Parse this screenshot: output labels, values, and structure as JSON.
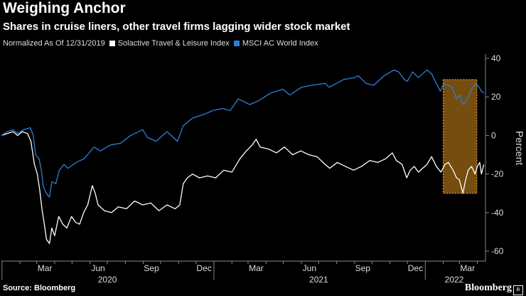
{
  "header": {
    "title": "Weighing Anchor",
    "subtitle": "Shares in cruise liners, other travel firms lagging wider stock market"
  },
  "legend": {
    "note": "Normalized As Of 12/31/2019",
    "items": [
      {
        "label": "Solactive Travel & Leisure Index",
        "color": "#ffffff"
      },
      {
        "label": "MSCI AC World Index",
        "color": "#2f7ed8"
      }
    ]
  },
  "footer": {
    "source": "Source: Bloomberg",
    "brand": "Bloomberg"
  },
  "colors": {
    "background": "#000000",
    "travel": "#ffffff",
    "world": "#2f7ed8",
    "highlight_fill": "#8a5a12",
    "highlight_border": "#f0a020"
  },
  "chart_data": {
    "type": "line",
    "title": "Weighing Anchor",
    "subtitle": "Shares in cruise liners, other travel firms lagging wider stock market",
    "ylabel": "Percent",
    "ylim": [
      -60,
      40
    ],
    "yticks": [
      40,
      20,
      0,
      -20,
      -40,
      -60
    ],
    "x_axis": {
      "month_ticks": [
        "Mar",
        "Jun",
        "Sep",
        "Dec",
        "Mar",
        "Jun",
        "Sep",
        "Dec",
        "Mar"
      ],
      "year_labels": [
        "2020",
        "2021",
        "2022"
      ]
    },
    "legend_position": "top-left",
    "grid": false,
    "highlight": {
      "from": "2022-02-01",
      "to": "2022-03-31"
    },
    "series": [
      {
        "name": "Solactive Travel & Leisure Index",
        "color": "#ffffff",
        "points": [
          [
            "2019-12-31",
            0
          ],
          [
            "2020-01-10",
            1
          ],
          [
            "2020-01-20",
            2
          ],
          [
            "2020-01-28",
            0
          ],
          [
            "2020-02-05",
            2
          ],
          [
            "2020-02-14",
            1
          ],
          [
            "2020-02-20",
            -3
          ],
          [
            "2020-02-26",
            -15
          ],
          [
            "2020-03-02",
            -20
          ],
          [
            "2020-03-06",
            -28
          ],
          [
            "2020-03-10",
            -38
          ],
          [
            "2020-03-13",
            -44
          ],
          [
            "2020-03-16",
            -50
          ],
          [
            "2020-03-18",
            -54
          ],
          [
            "2020-03-23",
            -56
          ],
          [
            "2020-03-27",
            -48
          ],
          [
            "2020-04-01",
            -52
          ],
          [
            "2020-04-08",
            -42
          ],
          [
            "2020-04-15",
            -46
          ],
          [
            "2020-04-22",
            -48
          ],
          [
            "2020-04-30",
            -42
          ],
          [
            "2020-05-07",
            -45
          ],
          [
            "2020-05-14",
            -46
          ],
          [
            "2020-05-21",
            -40
          ],
          [
            "2020-05-28",
            -36
          ],
          [
            "2020-06-05",
            -26
          ],
          [
            "2020-06-10",
            -30
          ],
          [
            "2020-06-15",
            -36
          ],
          [
            "2020-06-26",
            -39
          ],
          [
            "2020-07-08",
            -40
          ],
          [
            "2020-07-20",
            -37
          ],
          [
            "2020-08-03",
            -38
          ],
          [
            "2020-08-17",
            -34
          ],
          [
            "2020-08-31",
            -36
          ],
          [
            "2020-09-14",
            -35
          ],
          [
            "2020-09-28",
            -39
          ],
          [
            "2020-10-12",
            -36
          ],
          [
            "2020-10-26",
            -38
          ],
          [
            "2020-11-03",
            -36
          ],
          [
            "2020-11-09",
            -25
          ],
          [
            "2020-11-16",
            -22
          ],
          [
            "2020-11-25",
            -20
          ],
          [
            "2020-12-07",
            -22
          ],
          [
            "2020-12-21",
            -21
          ],
          [
            "2021-01-04",
            -22
          ],
          [
            "2021-01-18",
            -18
          ],
          [
            "2021-02-01",
            -19
          ],
          [
            "2021-02-15",
            -12
          ],
          [
            "2021-02-26",
            -8
          ],
          [
            "2021-03-08",
            -5
          ],
          [
            "2021-03-15",
            -2
          ],
          [
            "2021-03-22",
            -6
          ],
          [
            "2021-04-05",
            -7
          ],
          [
            "2021-04-19",
            -9
          ],
          [
            "2021-05-03",
            -6
          ],
          [
            "2021-05-17",
            -10
          ],
          [
            "2021-05-31",
            -8
          ],
          [
            "2021-06-14",
            -10
          ],
          [
            "2021-06-28",
            -11
          ],
          [
            "2021-07-12",
            -15
          ],
          [
            "2021-07-20",
            -17
          ],
          [
            "2021-08-02",
            -14
          ],
          [
            "2021-08-16",
            -16
          ],
          [
            "2021-08-30",
            -18
          ],
          [
            "2021-09-13",
            -16
          ],
          [
            "2021-09-27",
            -13
          ],
          [
            "2021-10-11",
            -14
          ],
          [
            "2021-10-25",
            -12
          ],
          [
            "2021-11-05",
            -9
          ],
          [
            "2021-11-12",
            -13
          ],
          [
            "2021-11-22",
            -15
          ],
          [
            "2021-11-30",
            -22
          ],
          [
            "2021-12-06",
            -18
          ],
          [
            "2021-12-13",
            -16
          ],
          [
            "2021-12-20",
            -19
          ],
          [
            "2022-01-04",
            -15
          ],
          [
            "2022-01-12",
            -11
          ],
          [
            "2022-01-20",
            -16
          ],
          [
            "2022-01-28",
            -19
          ],
          [
            "2022-02-04",
            -15
          ],
          [
            "2022-02-10",
            -14
          ],
          [
            "2022-02-18",
            -18
          ],
          [
            "2022-02-24",
            -22
          ],
          [
            "2022-03-01",
            -23
          ],
          [
            "2022-03-07",
            -30
          ],
          [
            "2022-03-11",
            -24
          ],
          [
            "2022-03-16",
            -18
          ],
          [
            "2022-03-22",
            -16
          ],
          [
            "2022-03-28",
            -20
          ],
          [
            "2022-04-01",
            -16
          ],
          [
            "2022-04-05",
            -14
          ],
          [
            "2022-04-08",
            -20
          ],
          [
            "2022-04-12",
            -15
          ]
        ]
      },
      {
        "name": "MSCI AC World Index",
        "color": "#2f7ed8",
        "points": [
          [
            "2019-12-31",
            0
          ],
          [
            "2020-01-10",
            2
          ],
          [
            "2020-01-20",
            3
          ],
          [
            "2020-01-28",
            1
          ],
          [
            "2020-02-07",
            3
          ],
          [
            "2020-02-19",
            4
          ],
          [
            "2020-02-24",
            0
          ],
          [
            "2020-02-28",
            -10
          ],
          [
            "2020-03-05",
            -12
          ],
          [
            "2020-03-09",
            -18
          ],
          [
            "2020-03-12",
            -26
          ],
          [
            "2020-03-16",
            -29
          ],
          [
            "2020-03-20",
            -31
          ],
          [
            "2020-03-23",
            -32
          ],
          [
            "2020-03-27",
            -24
          ],
          [
            "2020-04-03",
            -25
          ],
          [
            "2020-04-09",
            -18
          ],
          [
            "2020-04-17",
            -15
          ],
          [
            "2020-04-24",
            -17
          ],
          [
            "2020-05-08",
            -14
          ],
          [
            "2020-05-22",
            -12
          ],
          [
            "2020-06-08",
            -6
          ],
          [
            "2020-06-19",
            -8
          ],
          [
            "2020-07-06",
            -5
          ],
          [
            "2020-07-24",
            -4
          ],
          [
            "2020-08-10",
            0
          ],
          [
            "2020-08-31",
            3
          ],
          [
            "2020-09-08",
            -1
          ],
          [
            "2020-09-23",
            -3
          ],
          [
            "2020-10-12",
            2
          ],
          [
            "2020-10-30",
            -3
          ],
          [
            "2020-11-09",
            5
          ],
          [
            "2020-11-25",
            9
          ],
          [
            "2020-12-15",
            11
          ],
          [
            "2020-12-31",
            13
          ],
          [
            "2021-01-15",
            14
          ],
          [
            "2021-01-29",
            13
          ],
          [
            "2021-02-12",
            19
          ],
          [
            "2021-03-04",
            16
          ],
          [
            "2021-03-19",
            18
          ],
          [
            "2021-04-09",
            22
          ],
          [
            "2021-04-30",
            24
          ],
          [
            "2021-05-12",
            21
          ],
          [
            "2021-06-01",
            25
          ],
          [
            "2021-06-18",
            26
          ],
          [
            "2021-07-12",
            27
          ],
          [
            "2021-07-19",
            25
          ],
          [
            "2021-08-13",
            29
          ],
          [
            "2021-08-31",
            30
          ],
          [
            "2021-09-07",
            31
          ],
          [
            "2021-09-21",
            27
          ],
          [
            "2021-10-04",
            26
          ],
          [
            "2021-10-22",
            31
          ],
          [
            "2021-11-08",
            34
          ],
          [
            "2021-11-16",
            33
          ],
          [
            "2021-11-26",
            29
          ],
          [
            "2021-12-01",
            28
          ],
          [
            "2021-12-10",
            33
          ],
          [
            "2021-12-20",
            30
          ],
          [
            "2022-01-04",
            34
          ],
          [
            "2022-01-12",
            32
          ],
          [
            "2022-01-20",
            27
          ],
          [
            "2022-01-27",
            23
          ],
          [
            "2022-02-02",
            27
          ],
          [
            "2022-02-10",
            26
          ],
          [
            "2022-02-16",
            25
          ],
          [
            "2022-02-24",
            19
          ],
          [
            "2022-03-01",
            21
          ],
          [
            "2022-03-08",
            16
          ],
          [
            "2022-03-15",
            19
          ],
          [
            "2022-03-22",
            24
          ],
          [
            "2022-03-29",
            27
          ],
          [
            "2022-04-04",
            25
          ],
          [
            "2022-04-08",
            23
          ],
          [
            "2022-04-12",
            22
          ]
        ]
      }
    ]
  }
}
